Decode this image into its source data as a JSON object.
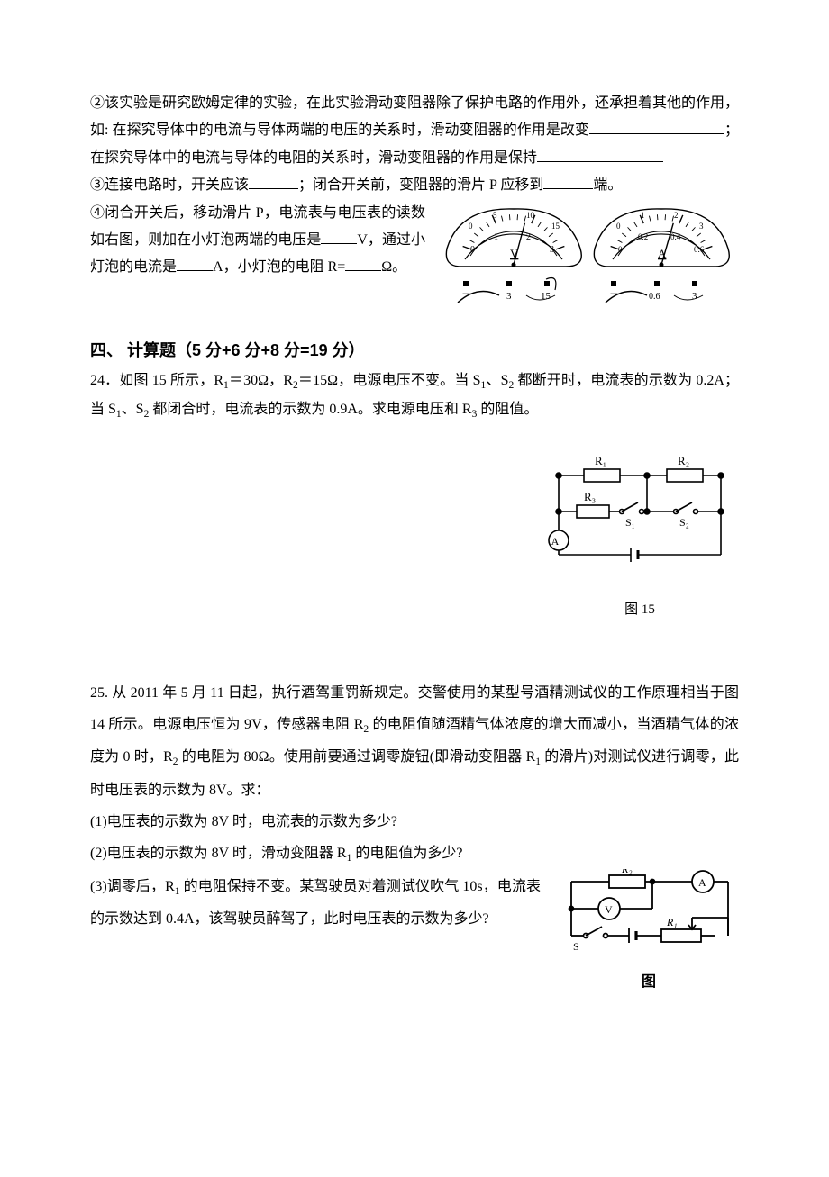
{
  "q2": {
    "line1": "②该实验是研究欧姆定律的实验，在此实验滑动变阻器除了保护电路的作用外，还承担着其他的作用，如: 在探究导体中的电流与导体两端的电压的关系时，滑动变阻器的作用是改变",
    "line1_tail": "；在探究导体中的电流与导体的电阻的关系时，滑动变阻器的作用是保持"
  },
  "q3": {
    "line": "③连接电路时，开关应该",
    "line_mid": "；闭合开关前，变阻器的滑片 P 应移到",
    "line_end": "端。"
  },
  "q4": {
    "l1": "④闭合开关后，移动滑片 P，电流表与电压表的读数如右图，则加在小灯泡两端的电压是",
    "l2": "V，通过小灯泡的电流是",
    "l3": "A，小灯泡的电阻 R=",
    "l4": "Ω。"
  },
  "meters": {
    "volt": {
      "unit_label": "V",
      "major_ticks": [
        "0",
        "1",
        "2",
        "3"
      ],
      "upper_ticks": [
        "0",
        "5",
        "10",
        "15"
      ],
      "range_btns": [
        "－",
        "3",
        "15"
      ],
      "needle_deg": 75
    },
    "amm": {
      "unit_label": "A",
      "major_ticks": [
        "0",
        "0.2",
        "0.4",
        "0.6"
      ],
      "upper_ticks": [
        "0",
        "1",
        "2",
        "3"
      ],
      "range_btns": [
        "－",
        "0.6",
        "3"
      ],
      "needle_deg": 76
    },
    "colors": {
      "stroke": "#000000",
      "fill": "#ffffff",
      "dial_stroke": "#000000"
    }
  },
  "section4": {
    "title": "四、 计算题（5 分+6 分+8 分=19 分）"
  },
  "q24": {
    "text_a": "24．如图 15 所示，R",
    "r1": "1",
    "eq1": "＝30Ω，R",
    "r2": "2",
    "eq2": "＝15Ω，电源电压不变。当 S",
    "s1": "1",
    "mid1": "、S",
    "s2": "2",
    "mid2": " 都断开时，电流表的示数为 0.2A；当 S",
    "s1b": "1",
    "mid3": "、S",
    "s2b": "2",
    "tail": " 都闭合时，电流表的示数为 0.9A。求电源电压和 R",
    "r3": "3",
    "end": " 的阻值。",
    "fig_caption": "图 15",
    "fig": {
      "R1": "R₁",
      "R2": "R₂",
      "R3": "R₃",
      "S1": "S₁",
      "S2": "S₂",
      "A": "A"
    }
  },
  "q25": {
    "l1": "25. 从 2011 年 5 月 11 日起，执行酒驾重罚新规定。交警使用的某型号酒精测试仪的工作原理相当于图 14 所示。电源电压恒为 9V，传感器电阻 R",
    "sub2": "2",
    "l1b": " 的电阻值随酒精气体浓度的增大而减小，当酒精气体的浓度为 0 时，R",
    "sub2b": "2",
    "l1c": " 的电阻为 80Ω。使用前要通过调零旋钮(即滑动变阻器 R",
    "sub1": "1",
    "l1d": " 的滑片)对测试仪进行调零，此时电压表的示数为 8V。求：",
    "p1": "(1)电压表的示数为 8V 时，电流表的示数为多少?",
    "p2": "(2)电压表的示数为 8V 时，滑动变阻器 R",
    "p2sub": "1",
    "p2b": " 的电阻值为多少?",
    "p3": "(3)调零后，R",
    "p3sub": "1",
    "p3b": " 的电阻保持不变。某驾驶员对着测试仪吹气 10s，电流表的示数达到 0.4A，该驾驶员醉驾了，此时电压表的示数为多少?",
    "fig": {
      "R2": "R₂",
      "R1": "R₁",
      "A": "A",
      "V": "V",
      "S": "S"
    },
    "fig_caption": "图"
  }
}
